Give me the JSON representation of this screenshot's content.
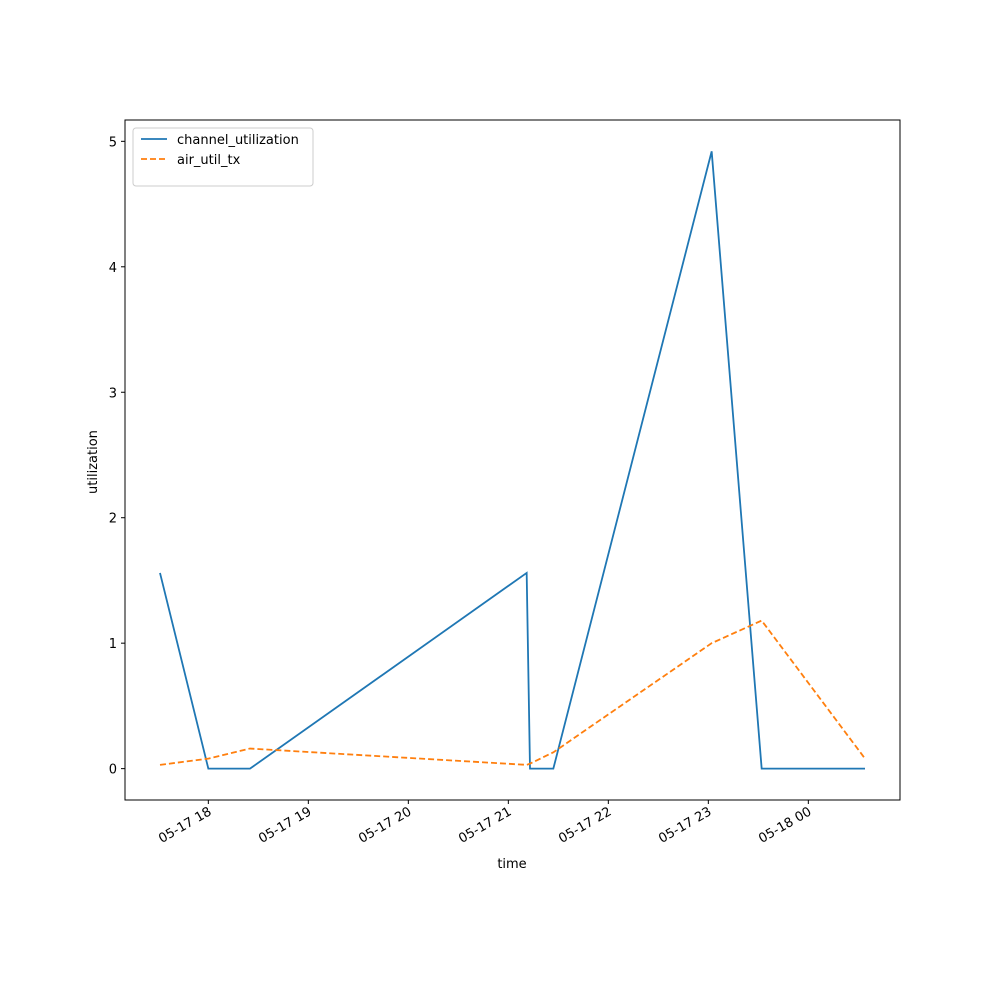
{
  "chart_data": {
    "type": "line",
    "x_label": "time",
    "y_label": "utilization",
    "x": [
      "05-17 17:31",
      "05-17 18:00",
      "05-17 18:25",
      "05-17 21:11",
      "05-17 21:13",
      "05-17 21:27",
      "05-17 23:02",
      "05-17 23:32",
      "05-18 00:34"
    ],
    "series": [
      {
        "name": "channel_utilization",
        "color": "#1f77b4",
        "dash": "solid",
        "values": [
          1.56,
          0,
          0,
          1.56,
          0,
          0,
          4.92,
          0,
          0
        ]
      },
      {
        "name": "air_util_tx",
        "color": "#ff7f0e",
        "dash": "dashed",
        "values": [
          0.03,
          0.08,
          0.16,
          0.03,
          0.04,
          0.13,
          1.0,
          1.18,
          0.08
        ]
      }
    ],
    "xlim": [
      "05-17 17:10",
      "05-18 00:55"
    ],
    "xticks": [
      {
        "value": "05-17 18:00",
        "label": "05-17 18"
      },
      {
        "value": "05-17 19:00",
        "label": "05-17 19"
      },
      {
        "value": "05-17 20:00",
        "label": "05-17 20"
      },
      {
        "value": "05-17 21:00",
        "label": "05-17 21"
      },
      {
        "value": "05-17 22:00",
        "label": "05-17 22"
      },
      {
        "value": "05-17 23:00",
        "label": "05-17 23"
      },
      {
        "value": "05-18 00:00",
        "label": "05-18 00"
      }
    ],
    "ylim": [
      -0.25,
      5.17
    ],
    "yticks": [
      0,
      1,
      2,
      3,
      4,
      5
    ],
    "legend": "upper left",
    "grid": false
  }
}
